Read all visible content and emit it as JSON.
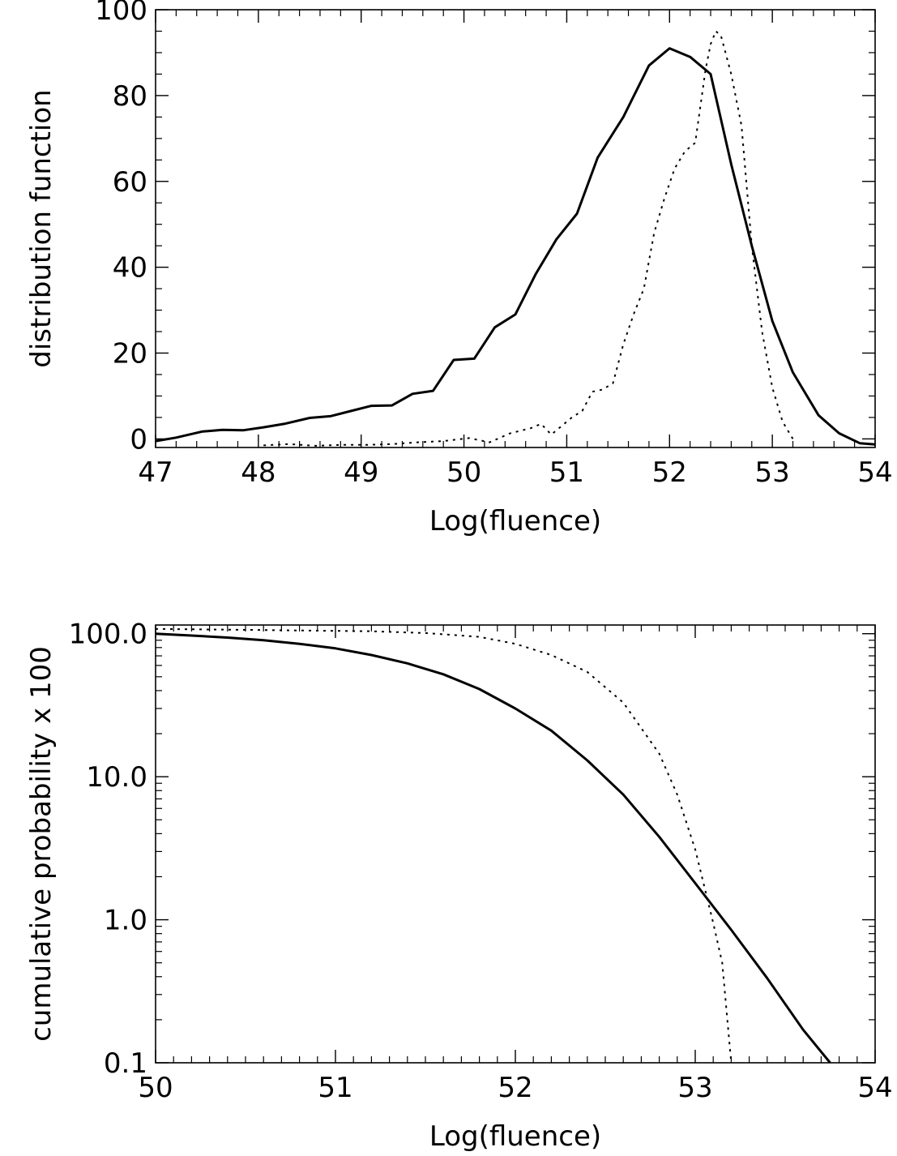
{
  "chart_data": [
    {
      "type": "line",
      "xlabel": "Log(fluence)",
      "ylabel": "distribution function",
      "xlim": [
        47,
        54
      ],
      "ylim": [
        -2,
        100
      ],
      "yscale": "linear",
      "xticks": [
        47,
        48,
        49,
        50,
        51,
        52,
        53,
        54
      ],
      "xtick_labels": [
        "47",
        "48",
        "49",
        "50",
        "51",
        "52",
        "53",
        "54"
      ],
      "yticks": [
        0,
        20,
        40,
        60,
        80,
        100
      ],
      "ytick_labels": [
        "0",
        "20",
        "40",
        "60",
        "80",
        "100"
      ],
      "grid": false,
      "series": [
        {
          "style": "solid",
          "x": [
            47.0,
            47.2,
            47.45,
            47.65,
            47.85,
            48.05,
            48.25,
            48.5,
            48.7,
            48.9,
            49.1,
            49.3,
            49.5,
            49.7,
            49.9,
            50.1,
            50.3,
            50.5,
            50.7,
            50.9,
            51.1,
            51.3,
            51.55,
            51.8,
            52.0,
            52.2,
            52.4,
            52.6,
            52.8,
            53.0,
            53.2,
            53.45,
            53.65,
            53.85,
            54.0
          ],
          "y": [
            -0.5,
            0.3,
            1.7,
            2.1,
            2.0,
            2.7,
            3.5,
            4.9,
            5.3,
            6.5,
            7.7,
            7.8,
            10.5,
            11.2,
            18.4,
            18.7,
            26.0,
            29.0,
            38.5,
            46.5,
            52.5,
            65.5,
            75.0,
            87.0,
            91.0,
            89.0,
            85.0,
            64.0,
            45.0,
            27.5,
            15.5,
            5.5,
            1.3,
            -1.0,
            -1.3
          ]
        },
        {
          "style": "dotted",
          "x": [
            48.05,
            48.3,
            48.55,
            48.8,
            49.05,
            49.3,
            49.55,
            49.8,
            50.05,
            50.25,
            50.45,
            50.65,
            50.75,
            50.85,
            51.05,
            51.15,
            51.25,
            51.35,
            51.45,
            51.55,
            51.65,
            51.75,
            51.85,
            51.95,
            52.05,
            52.15,
            52.25,
            52.35,
            52.4,
            52.45,
            52.5,
            52.6,
            52.7,
            52.8,
            52.9,
            53.0,
            53.1,
            53.2
          ],
          "y": [
            -1.5,
            -1.2,
            -1.6,
            -1.4,
            -1.4,
            -1.2,
            -0.8,
            -0.5,
            0.2,
            -0.8,
            1.3,
            2.5,
            3.5,
            1.0,
            5.0,
            6.5,
            11.0,
            11.5,
            13.0,
            22.0,
            29.0,
            35.0,
            48.0,
            56.0,
            63.0,
            67.0,
            69.0,
            86.0,
            92.0,
            95.0,
            94.0,
            85.0,
            73.0,
            45.0,
            25.0,
            12.0,
            4.0,
            0.0
          ]
        }
      ]
    },
    {
      "type": "line",
      "xlabel": "Log(fluence)",
      "ylabel": "cumulative probability x 100",
      "xlim": [
        50,
        54
      ],
      "ylim": [
        0.1,
        115
      ],
      "yscale": "log",
      "xticks": [
        50,
        51,
        52,
        53,
        54
      ],
      "xtick_labels": [
        "50",
        "51",
        "52",
        "53",
        "54"
      ],
      "yticks": [
        0.1,
        1,
        10,
        100
      ],
      "ytick_labels": [
        "0.1",
        "1.0",
        "10.0",
        "100.0"
      ],
      "grid": false,
      "series": [
        {
          "style": "solid",
          "x": [
            50.0,
            50.2,
            50.4,
            50.6,
            50.8,
            51.0,
            51.2,
            51.4,
            51.6,
            51.8,
            52.0,
            52.2,
            52.4,
            52.6,
            52.8,
            53.0,
            53.2,
            53.4,
            53.6,
            53.75
          ],
          "y": [
            100,
            97,
            94,
            90,
            85,
            79,
            71,
            62,
            52,
            41,
            30,
            21,
            13,
            7.5,
            3.8,
            1.8,
            0.85,
            0.39,
            0.17,
            0.1
          ]
        },
        {
          "style": "dotted",
          "x": [
            50.0,
            50.3,
            50.6,
            50.9,
            51.2,
            51.5,
            51.8,
            52.0,
            52.2,
            52.4,
            52.6,
            52.8,
            52.9,
            53.0,
            53.1,
            53.15,
            53.2
          ],
          "y": [
            108,
            107,
            106,
            105,
            104,
            101,
            95,
            85,
            71,
            54,
            33,
            14.5,
            7.5,
            3.1,
            0.95,
            0.5,
            0.1
          ]
        }
      ]
    }
  ]
}
